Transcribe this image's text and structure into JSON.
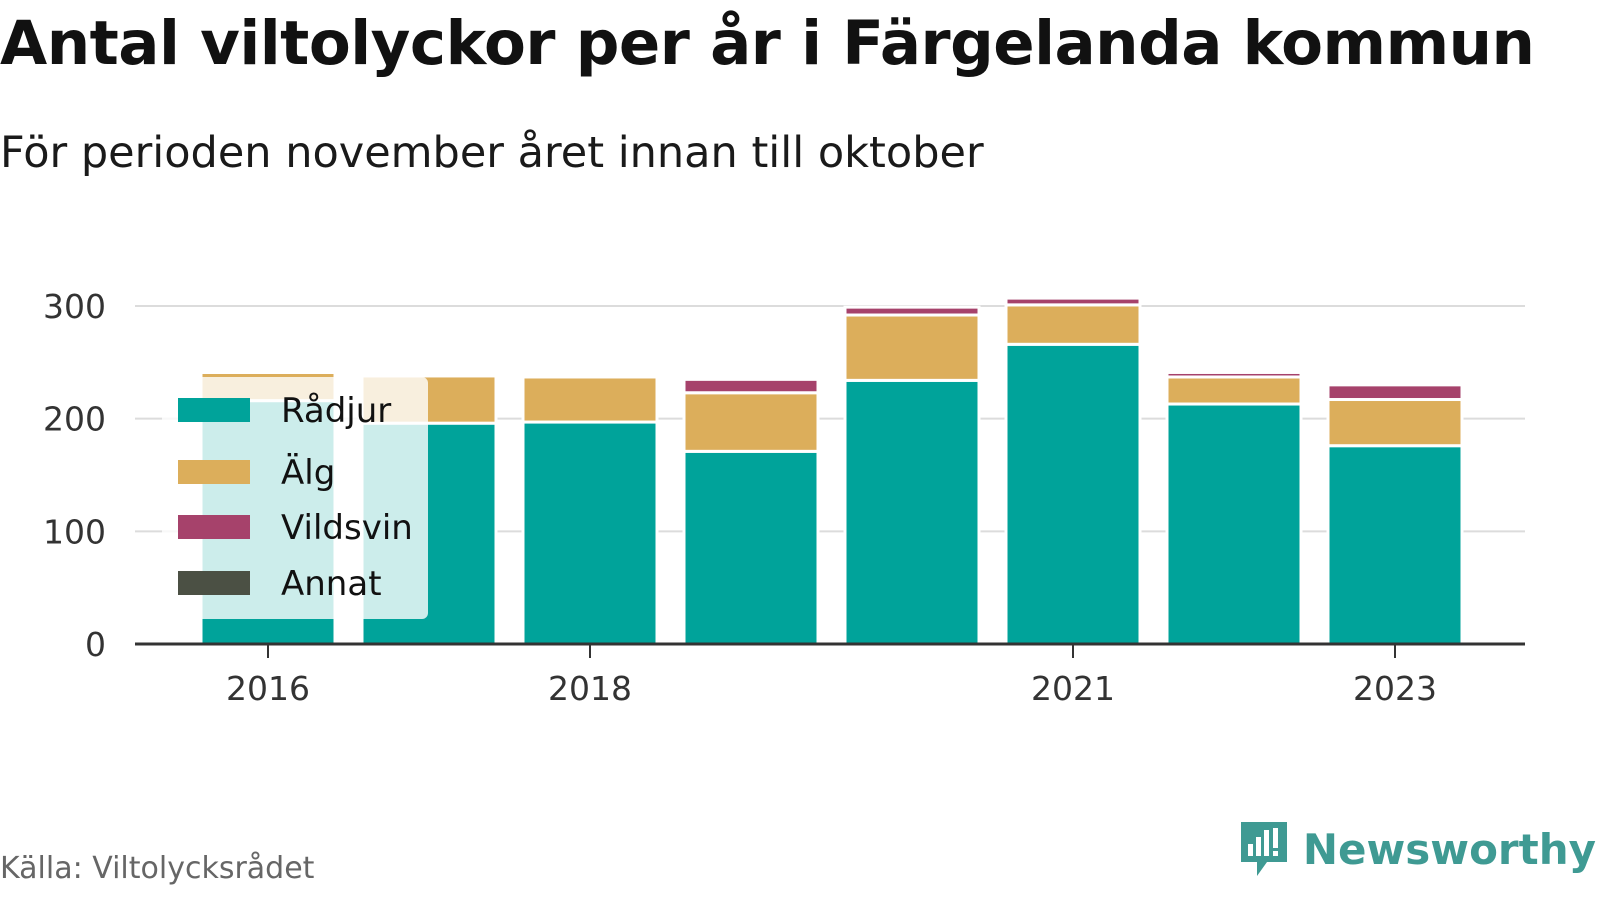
{
  "header": {
    "title": "Antal viltolyckor per år i Färgelanda kommun",
    "subtitle": "För perioden november året innan till oktober"
  },
  "footer": {
    "source": "Källa: Viltolycksrådet",
    "brand": "Newsworthy",
    "brand_icon": "newsworthy-logo-icon"
  },
  "chart_data": {
    "type": "bar",
    "stacked": true,
    "categories": [
      "2016",
      "2017",
      "2018",
      "2019",
      "2020",
      "2021",
      "2022",
      "2023"
    ],
    "tick_labels": [
      "2016",
      "",
      "2018",
      "",
      "",
      "2021",
      "",
      "2023"
    ],
    "series": [
      {
        "name": "Rådjur",
        "color": "#00a39a",
        "values": [
          216,
          196,
          197,
          171,
          234,
          266,
          213,
          176
        ]
      },
      {
        "name": "Älg",
        "color": "#dcae5b",
        "values": [
          25,
          42,
          40,
          52,
          58,
          35,
          24,
          41
        ]
      },
      {
        "name": "Vildsvin",
        "color": "#a6426b",
        "values": [
          2,
          2,
          0,
          12,
          7,
          6,
          4,
          13
        ]
      },
      {
        "name": "Annat",
        "color": "#4b5044",
        "values": [
          0,
          0,
          0,
          1,
          0,
          0,
          0,
          0
        ]
      }
    ],
    "yticks": [
      0,
      100,
      200,
      300
    ],
    "ylim": [
      0,
      310
    ],
    "grid": true,
    "legend": "top-left overlay"
  }
}
